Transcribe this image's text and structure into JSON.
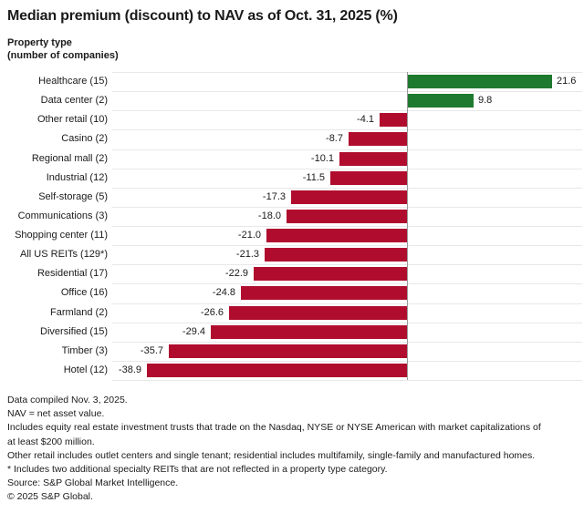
{
  "header": {
    "title": "Median premium (discount) to NAV as of Oct. 31, 2025 (%)",
    "y_axis_title_line1": "Property type",
    "y_axis_title_line2": "(number of companies)"
  },
  "chart_data": {
    "type": "bar",
    "orientation": "horizontal",
    "title": "Median premium (discount) to NAV as of Oct. 31, 2025 (%)",
    "ylabel": "Property type (number of companies)",
    "xlabel": "",
    "categories": [
      "Healthcare (15)",
      "Data center (2)",
      "Other retail (10)",
      "Casino (2)",
      "Regional mall (2)",
      "Industrial (12)",
      "Self-storage (5)",
      "Communications (3)",
      "Shopping center (11)",
      "All US REITs (129*)",
      "Residential (17)",
      "Office (16)",
      "Farmland (2)",
      "Diversified (15)",
      "Timber (3)",
      "Hotel (12)"
    ],
    "values": [
      21.6,
      9.8,
      -4.1,
      -8.7,
      -10.1,
      -11.5,
      -17.3,
      -18.0,
      -21.0,
      -21.3,
      -22.9,
      -24.8,
      -26.6,
      -29.4,
      -35.7,
      -38.9
    ],
    "value_labels": [
      "21.6",
      "9.8",
      "-4.1",
      "-8.7",
      "-10.1",
      "-11.5",
      "-17.3",
      "-18.0",
      "-21.0",
      "-21.3",
      "-22.9",
      "-24.8",
      "-26.6",
      "-29.4",
      "-35.7",
      "-38.9"
    ],
    "xlim": [
      -44.1,
      26.2
    ],
    "grid": "light horizontal row separators, gray vertical zero axis",
    "legend": "none",
    "data_label_position": "outside bar ends",
    "positive_color": "#1e7a2e",
    "negative_color": "#b00d2e",
    "separator_color": "#e8e8e8",
    "zero_line_color": "#9a9a9a"
  },
  "footnotes": {
    "lines": [
      "Data compiled Nov. 3, 2025.",
      "NAV = net asset value.",
      "Includes equity real estate investment trusts that trade on the Nasdaq, NYSE or NYSE American with market capitalizations of",
      "at least $200 million.",
      "Other retail includes outlet centers and single tenant; residential includes multifamily, single-family and manufactured homes.",
      "* Includes two additional specialty REITs that are not reflected in a property type category.",
      "Source: S&P Global Market Intelligence.",
      "© 2025 S&P Global."
    ]
  }
}
